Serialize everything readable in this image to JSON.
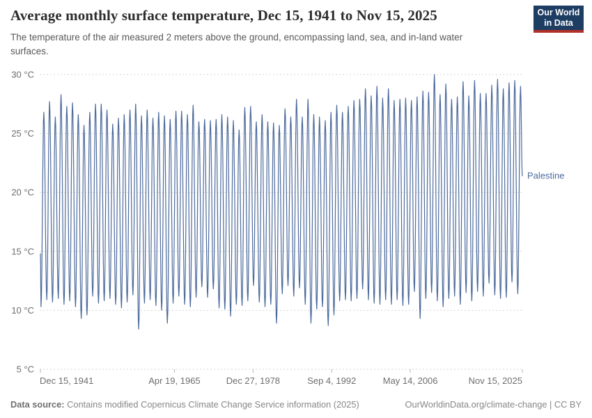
{
  "header": {
    "title": "Average monthly surface temperature, Dec 15, 1941 to Nov 15, 2025",
    "subtitle": "The temperature of the air measured 2 meters above the ground, encompassing land, sea, and in-land water surfaces.",
    "logo": {
      "line1": "Our World",
      "line2": "in Data",
      "bg_color": "#1d3d63",
      "accent_color": "#b0302a"
    }
  },
  "footer": {
    "source_label": "Data source:",
    "source_text": " Contains modified Copernicus Climate Change Service information (2025)",
    "link_text": "OurWorldinData.org/climate-change | CC BY"
  },
  "chart_data": {
    "type": "line",
    "title": "Average monthly surface temperature, Dec 15, 1941 to Nov 15, 2025",
    "series_label": "Palestine",
    "line_color": "#4C6A9C",
    "gridline_color": "#d4d4d4",
    "axis_label_color": "#6e6e6e",
    "grid": true,
    "legend_position": "right-of-line-end",
    "y_axis": {
      "unit": "°C",
      "ticks": [
        5,
        10,
        15,
        20,
        25,
        30
      ],
      "tick_labels": [
        "5 °C",
        "10 °C",
        "15 °C",
        "20 °C",
        "25 °C",
        "30 °C"
      ],
      "range": [
        5,
        30
      ]
    },
    "x_axis": {
      "range_start": "Dec 15, 1941",
      "range_end": "Nov 15, 2025",
      "x_range": [
        1941.958,
        2025.871
      ],
      "ticks": [
        {
          "label": "Dec 15, 1941",
          "t": 1941.958
        },
        {
          "label": "Apr 19, 1965",
          "t": 1965.296
        },
        {
          "label": "Dec 27, 1978",
          "t": 1978.989
        },
        {
          "label": "Sep 4, 1992",
          "t": 1992.677
        },
        {
          "label": "May 14, 2006",
          "t": 2006.364
        },
        {
          "label": "Nov 15, 2025",
          "t": 2025.871
        }
      ]
    },
    "series": {
      "name": "Palestine",
      "description": "Monthly mean temperature oscillating annually; per-year summer peaks and winter troughs (°C) estimated from plot",
      "start_year": 1942,
      "start_value": 14.8,
      "end_value": 21.4,
      "summer_peak_c": [
        26.8,
        27.7,
        26.4,
        28.3,
        27.3,
        27.6,
        26.6,
        25.7,
        26.8,
        27.5,
        27.5,
        27.0,
        25.8,
        26.3,
        26.6,
        27.0,
        27.5,
        26.5,
        27.0,
        26.3,
        26.8,
        26.5,
        26.2,
        26.9,
        26.9,
        26.6,
        27.4,
        26.0,
        26.2,
        26.1,
        26.2,
        26.6,
        26.4,
        26.1,
        25.3,
        27.2,
        27.3,
        26.0,
        26.6,
        26.0,
        25.9,
        25.7,
        27.1,
        26.4,
        27.9,
        26.4,
        27.9,
        26.6,
        26.4,
        26.1,
        26.8,
        27.4,
        26.8,
        27.3,
        27.8,
        27.9,
        28.8,
        28.2,
        29.0,
        28.0,
        28.8,
        27.8,
        27.9,
        28.0,
        27.8,
        28.1,
        28.6,
        28.5,
        30.0,
        28.3,
        29.2,
        27.9,
        28.1,
        29.4,
        28.2,
        29.5,
        28.4,
        28.4,
        29.1,
        29.6,
        28.8,
        29.3,
        29.5,
        29.0
      ],
      "winter_trough_c": [
        10.3,
        10.9,
        10.7,
        11.0,
        10.5,
        10.8,
        10.3,
        9.3,
        9.6,
        11.2,
        10.6,
        10.8,
        11.0,
        10.5,
        10.2,
        10.7,
        11.3,
        8.4,
        10.6,
        10.9,
        10.4,
        10.0,
        8.9,
        10.6,
        11.2,
        10.5,
        10.3,
        11.1,
        12.0,
        11.1,
        11.8,
        10.2,
        10.1,
        9.5,
        10.5,
        10.4,
        10.8,
        12.1,
        10.7,
        10.3,
        10.5,
        8.9,
        11.4,
        12.1,
        11.2,
        11.9,
        10.5,
        8.9,
        10.1,
        10.3,
        8.7,
        9.6,
        10.8,
        10.9,
        10.8,
        11.0,
        11.8,
        10.9,
        10.6,
        10.5,
        10.9,
        10.5,
        10.9,
        10.4,
        10.5,
        11.6,
        9.3,
        11.0,
        11.5,
        10.8,
        10.3,
        11.0,
        11.2,
        10.5,
        11.5,
        10.8,
        11.6,
        11.2,
        12.3,
        11.3,
        11.0,
        11.1,
        12.4,
        11.4
      ]
    }
  }
}
